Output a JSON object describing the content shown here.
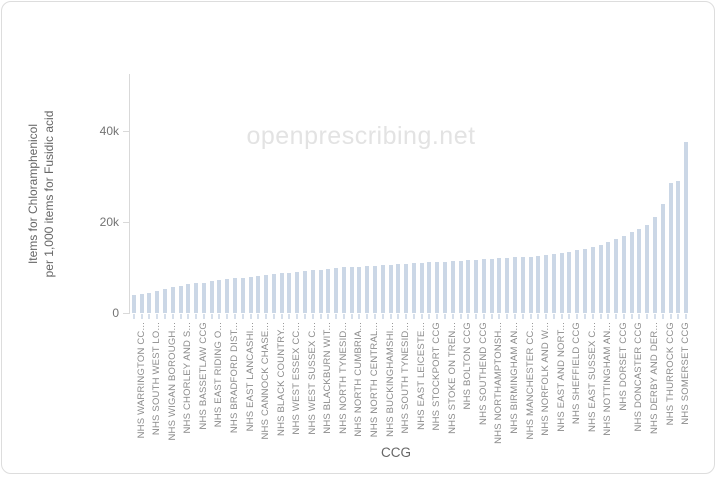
{
  "watermark": "openprescribing.net",
  "y_axis": {
    "title_line1": "Items for Chloramphenicol",
    "title_line2": "per 1,000 items for Fusidic acid"
  },
  "x_axis": {
    "title": "CCG"
  },
  "chart_data": {
    "type": "bar",
    "title": "",
    "xlabel": "CCG",
    "ylabel": "Items for Chloramphenicol per 1,000 items for Fusidic acid",
    "ylim": [
      0,
      52500
    ],
    "grid": false,
    "legend": false,
    "bar_color": "#cbd7e6",
    "y_ticks": [
      {
        "label": "0",
        "value": 0
      },
      {
        "label": "20k",
        "value": 20000
      },
      {
        "label": "40k",
        "value": 40000
      }
    ],
    "label_every_n_bars": 2,
    "tick_labels": [
      "NHS WARRINGTON CC...",
      "NHS SOUTH WEST LO...",
      "NHS WIGAN BOROUGH...",
      "NHS CHORLEY AND S...",
      "NHS BASSETLAW CCG",
      "NHS EAST RIDING O...",
      "NHS BRADFORD DIST...",
      "NHS EAST LANCASHI...",
      "NHS CANNOCK CHASE...",
      "NHS BLACK COUNTRY...",
      "NHS WEST ESSEX CC...",
      "NHS WEST SUSSEX C...",
      "NHS BLACKBURN WIT...",
      "NHS NORTH TYNESID...",
      "NHS NORTH CUMBRIA...",
      "NHS NORTH CENTRAL...",
      "NHS BUCKINGHAMSHI...",
      "NHS SOUTH TYNESID...",
      "NHS EAST LEICESTE...",
      "NHS STOCKPORT CCG",
      "NHS STOKE ON TREN...",
      "NHS BOLTON CCG",
      "NHS SOUTHEND CCG",
      "NHS NORTHAMPTONSH...",
      "NHS BIRMINGHAM AN...",
      "NHS MANCHESTER CC...",
      "NHS NORFOLK AND W...",
      "NHS EAST AND NORT...",
      "NHS SHEFFIELD CCG",
      "NHS EAST SUSSEX C...",
      "NHS NOTTINGHAM AN...",
      "NHS DORSET CCG",
      "NHS DONCASTER CCG",
      "NHS DERBY AND DER...",
      "NHS THURROCK CCG",
      "NHS SOMERSET CCG"
    ],
    "values": [
      3900,
      4200,
      4500,
      4800,
      5300,
      5700,
      6000,
      6300,
      6500,
      6700,
      7000,
      7200,
      7400,
      7600,
      7800,
      8000,
      8200,
      8400,
      8600,
      8700,
      8900,
      9000,
      9200,
      9400,
      9500,
      9700,
      9800,
      10000,
      10100,
      10200,
      10300,
      10400,
      10500,
      10600,
      10700,
      10800,
      10900,
      11000,
      11100,
      11200,
      11300,
      11400,
      11500,
      11600,
      11700,
      11800,
      11900,
      12000,
      12100,
      12200,
      12300,
      12400,
      12600,
      12800,
      13000,
      13200,
      13500,
      13800,
      14100,
      14500,
      15000,
      15600,
      16200,
      17000,
      17800,
      18500,
      19300,
      21000,
      24000,
      28500,
      29000,
      37500
    ]
  }
}
